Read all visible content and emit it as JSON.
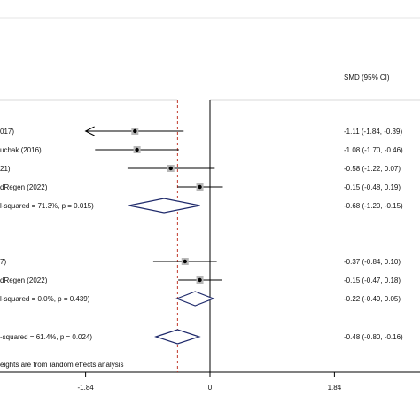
{
  "chart_data": {
    "type": "forest",
    "title": "",
    "xlabel": "",
    "ylabel": "",
    "ci_header": "SMD (95% CI)",
    "xlim": [
      -3.3,
      2.6
    ],
    "xticks": [
      -1.84,
      0,
      1.84
    ],
    "xtick_labels": [
      "-1.84",
      "0",
      "1.84"
    ],
    "overall_line": -0.48,
    "footnote": "eights are from random effects analysis",
    "rows": [
      {
        "label": "017)",
        "kind": "study",
        "est": -1.11,
        "lo": -1.84,
        "hi": -0.39,
        "arrow_left": true,
        "ci_text": "-1.11 (-1.84, -0.39)"
      },
      {
        "label": "uchak (2016)",
        "kind": "study",
        "est": -1.08,
        "lo": -1.7,
        "hi": -0.46,
        "ci_text": "-1.08 (-1.70, -0.46)"
      },
      {
        "label": "21)",
        "kind": "study",
        "est": -0.58,
        "lo": -1.22,
        "hi": 0.07,
        "ci_text": "-0.58 (-1.22, 0.07)"
      },
      {
        "label": "dRegen (2022)",
        "kind": "study",
        "est": -0.15,
        "lo": -0.48,
        "hi": 0.19,
        "ci_text": "-0.15 (-0.48, 0.19)"
      },
      {
        "label": "l-squared = 71.3%, p = 0.015)",
        "kind": "subtotal",
        "est": -0.68,
        "lo": -1.2,
        "hi": -0.15,
        "ci_text": "-0.68 (-1.20, -0.15)"
      },
      {
        "label": "7)",
        "kind": "study",
        "est": -0.37,
        "lo": -0.84,
        "hi": 0.1,
        "ci_text": "-0.37 (-0.84, 0.10)"
      },
      {
        "label": "dRegen (2022)",
        "kind": "study",
        "est": -0.15,
        "lo": -0.47,
        "hi": 0.18,
        "ci_text": "-0.15 (-0.47, 0.18)"
      },
      {
        "label": "l-squared = 0.0%, p = 0.439)",
        "kind": "subtotal",
        "est": -0.22,
        "lo": -0.49,
        "hi": 0.05,
        "ci_text": "-0.22 (-0.49, 0.05)"
      },
      {
        "label": "-squared = 61.4%, p = 0.024)",
        "kind": "overall",
        "est": -0.48,
        "lo": -0.8,
        "hi": -0.16,
        "ci_text": "-0.48 (-0.80, -0.16)"
      }
    ]
  }
}
